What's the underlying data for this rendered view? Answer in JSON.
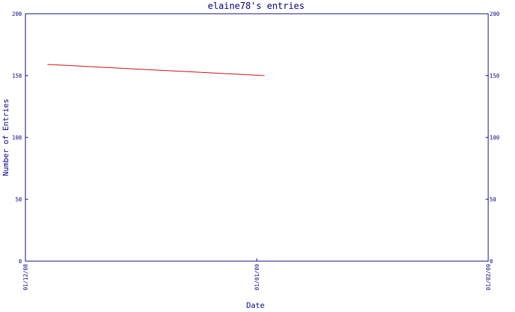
{
  "chart_data": {
    "type": "line",
    "title": "elaine78's entries",
    "xlabel": "Date",
    "ylabel": "Number of Entries",
    "x_tick_labels": [
      "01/12/08",
      "01/01/09",
      "01/02/09"
    ],
    "ylim": [
      0,
      200
    ],
    "y_ticks": [
      0,
      50,
      100,
      150,
      200
    ],
    "grid": false,
    "right_axis_ticks": true,
    "series": [
      {
        "x": [
          "2008-12-04",
          "2009-01-02"
        ],
        "y": [
          159,
          150
        ]
      }
    ],
    "colors": {
      "axis": "#000080",
      "text": "#000080",
      "series": "#cc0000",
      "background": "#ffffff"
    }
  }
}
